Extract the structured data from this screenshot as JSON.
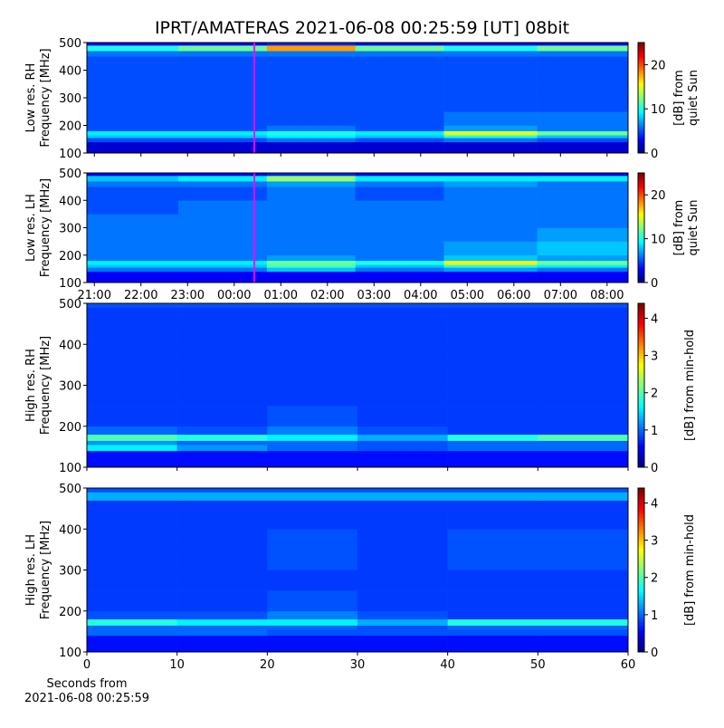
{
  "title": "IPRT/AMATERAS 2021-06-08 00:25:59 [UT]   08bit",
  "chart_data": [
    {
      "type": "spectrogram",
      "ylabel": [
        "Low res. RH",
        "Frequency [MHz]"
      ],
      "colormap": "jet",
      "xlim": [
        20.84,
        32.45
      ],
      "xticks": [
        21,
        22,
        23,
        24,
        25,
        26,
        27,
        28,
        29,
        30,
        31,
        32
      ],
      "show_xtick_labels": false,
      "ylim": [
        100,
        500
      ],
      "yticks": [
        100,
        200,
        300,
        400,
        500
      ],
      "clim": [
        0,
        25
      ],
      "cticks": [
        0,
        10,
        20
      ],
      "clabel": [
        "[dB] from",
        "quiet Sun"
      ],
      "marker": {
        "x": 24.433,
        "color": "#ff00ff"
      },
      "time_edges": [
        20.84,
        22.8,
        24.7,
        26.6,
        28.5,
        30.5,
        32.45
      ],
      "freq_edges": [
        100,
        140,
        155,
        165,
        180,
        200,
        250,
        300,
        350,
        400,
        450,
        470,
        490,
        500
      ],
      "z": [
        [
          2,
          2,
          2,
          2,
          2,
          2
        ],
        [
          5,
          5,
          6,
          5,
          6,
          5
        ],
        [
          8,
          8,
          9,
          8,
          10,
          8
        ],
        [
          9,
          9,
          10,
          9,
          15,
          12
        ],
        [
          5,
          5,
          6,
          5,
          7,
          6
        ],
        [
          5,
          5,
          5,
          5,
          6,
          6
        ],
        [
          5,
          5,
          5,
          5,
          5,
          5
        ],
        [
          5,
          5,
          5,
          5,
          5,
          5
        ],
        [
          5,
          5,
          5,
          5,
          5,
          5
        ],
        [
          5,
          5,
          5,
          5,
          5,
          5
        ],
        [
          6,
          6,
          6,
          6,
          6,
          6
        ],
        [
          10,
          12,
          18,
          12,
          10,
          12
        ],
        [
          3,
          3,
          4,
          3,
          3,
          3
        ]
      ]
    },
    {
      "type": "spectrogram",
      "ylabel": [
        "Low res. LH",
        "Frequency [MHz]"
      ],
      "colormap": "jet",
      "xlim": [
        20.84,
        32.45
      ],
      "xticks": [
        {
          "value": 21,
          "label": "21:00"
        },
        {
          "value": 22,
          "label": "22:00"
        },
        {
          "value": 23,
          "label": "23:00"
        },
        {
          "value": 24,
          "label": "00:00"
        },
        {
          "value": 25,
          "label": "01:00"
        },
        {
          "value": 26,
          "label": "02:00"
        },
        {
          "value": 27,
          "label": "03:00"
        },
        {
          "value": 28,
          "label": "04:00"
        },
        {
          "value": 29,
          "label": "05:00"
        },
        {
          "value": 30,
          "label": "06:00"
        },
        {
          "value": 31,
          "label": "07:00"
        },
        {
          "value": 32,
          "label": "08:00"
        }
      ],
      "show_xtick_labels": true,
      "ylim": [
        100,
        500
      ],
      "yticks": [
        100,
        200,
        300,
        400,
        500
      ],
      "clim": [
        0,
        25
      ],
      "cticks": [
        0,
        10,
        20
      ],
      "clabel": [
        "[dB] from",
        "quiet Sun"
      ],
      "marker": {
        "x": 24.433,
        "color": "#ff00ff"
      },
      "time_edges": [
        20.84,
        22.8,
        24.7,
        26.6,
        28.5,
        30.5,
        32.45
      ],
      "freq_edges": [
        100,
        140,
        155,
        165,
        180,
        200,
        250,
        300,
        350,
        400,
        450,
        470,
        490,
        500
      ],
      "z": [
        [
          3,
          3,
          3,
          3,
          3,
          3
        ],
        [
          6,
          6,
          8,
          6,
          7,
          6
        ],
        [
          8,
          8,
          11,
          8,
          10,
          9
        ],
        [
          9,
          9,
          12,
          10,
          16,
          12
        ],
        [
          6,
          6,
          7,
          6,
          8,
          7
        ],
        [
          6,
          6,
          6,
          6,
          7,
          8
        ],
        [
          6,
          6,
          6,
          6,
          6,
          7
        ],
        [
          6,
          6,
          6,
          6,
          6,
          6
        ],
        [
          5,
          6,
          6,
          6,
          6,
          6
        ],
        [
          5,
          5,
          6,
          5,
          6,
          6
        ],
        [
          6,
          6,
          7,
          6,
          7,
          6
        ],
        [
          8,
          9,
          13,
          9,
          9,
          9
        ],
        [
          3,
          3,
          4,
          3,
          3,
          3
        ]
      ]
    },
    {
      "type": "spectrogram",
      "ylabel": [
        "High res. RH",
        "Frequency [MHz]"
      ],
      "colormap": "jet",
      "xlim": [
        0,
        60
      ],
      "xticks": [
        0,
        10,
        20,
        30,
        40,
        50,
        60
      ],
      "show_xtick_labels": false,
      "ylim": [
        100,
        500
      ],
      "yticks": [
        100,
        200,
        300,
        400,
        500
      ],
      "clim": [
        0,
        4.4
      ],
      "cticks": [
        0,
        1,
        2,
        3,
        4
      ],
      "clabel": [
        "[dB] from min-hold"
      ],
      "time_edges": [
        0,
        10,
        20,
        30,
        40,
        50,
        60
      ],
      "freq_edges": [
        100,
        140,
        155,
        165,
        180,
        200,
        250,
        300,
        350,
        400,
        450,
        470,
        490,
        500
      ],
      "z": [
        [
          0.6,
          0.6,
          0.6,
          0.6,
          0.6,
          0.6
        ],
        [
          1.6,
          1.2,
          1.0,
          0.9,
          1.0,
          1.0
        ],
        [
          1.2,
          1.0,
          1.0,
          0.9,
          1.0,
          1.0
        ],
        [
          2.0,
          1.8,
          1.6,
          1.3,
          1.8,
          2.0
        ],
        [
          1.0,
          0.9,
          1.1,
          0.9,
          0.8,
          0.8
        ],
        [
          0.8,
          0.8,
          0.9,
          0.8,
          0.8,
          0.8
        ],
        [
          0.8,
          0.8,
          0.8,
          0.8,
          0.8,
          0.8
        ],
        [
          0.8,
          0.8,
          0.8,
          0.8,
          0.8,
          0.8
        ],
        [
          0.8,
          0.8,
          0.8,
          0.8,
          0.8,
          0.8
        ],
        [
          0.8,
          0.8,
          0.8,
          0.8,
          0.8,
          0.8
        ],
        [
          0.8,
          0.8,
          0.8,
          0.8,
          0.8,
          0.8
        ],
        [
          0.8,
          0.8,
          0.8,
          0.8,
          0.8,
          0.8
        ],
        [
          0.9,
          0.9,
          0.9,
          0.9,
          0.9,
          0.9
        ]
      ]
    },
    {
      "type": "spectrogram",
      "ylabel": [
        "High res. LH",
        "Frequency [MHz]"
      ],
      "colormap": "jet",
      "xlim": [
        0,
        60
      ],
      "xticks": [
        0,
        10,
        20,
        30,
        40,
        50,
        60
      ],
      "show_xtick_labels": true,
      "xlabel": [
        "Seconds from",
        "2021-06-08 00:25:59"
      ],
      "ylim": [
        100,
        500
      ],
      "yticks": [
        100,
        200,
        300,
        400,
        500
      ],
      "clim": [
        0,
        4.4
      ],
      "cticks": [
        0,
        1,
        2,
        3,
        4
      ],
      "clabel": [
        "[dB] from min-hold"
      ],
      "time_edges": [
        0,
        10,
        20,
        30,
        40,
        50,
        60
      ],
      "freq_edges": [
        100,
        140,
        155,
        165,
        180,
        200,
        250,
        300,
        350,
        400,
        450,
        470,
        490,
        500
      ],
      "z": [
        [
          0.6,
          0.6,
          0.6,
          0.6,
          0.6,
          0.6
        ],
        [
          1.0,
          1.0,
          0.9,
          0.9,
          0.9,
          0.9
        ],
        [
          1.0,
          1.0,
          1.0,
          0.9,
          1.0,
          1.0
        ],
        [
          1.8,
          1.6,
          1.6,
          1.3,
          1.8,
          1.8
        ],
        [
          0.9,
          0.9,
          1.1,
          0.9,
          0.8,
          0.8
        ],
        [
          0.8,
          0.8,
          0.9,
          0.8,
          0.8,
          0.8
        ],
        [
          0.8,
          0.8,
          0.8,
          0.8,
          0.8,
          0.8
        ],
        [
          0.8,
          0.8,
          0.9,
          0.8,
          0.9,
          0.9
        ],
        [
          0.8,
          0.8,
          0.9,
          0.8,
          0.9,
          0.9
        ],
        [
          0.8,
          0.8,
          0.8,
          0.8,
          0.8,
          0.8
        ],
        [
          0.8,
          0.8,
          0.8,
          0.8,
          0.8,
          0.8
        ],
        [
          1.3,
          1.3,
          1.3,
          1.3,
          1.3,
          1.3
        ],
        [
          0.9,
          0.9,
          0.9,
          0.9,
          0.9,
          0.9
        ]
      ]
    }
  ]
}
